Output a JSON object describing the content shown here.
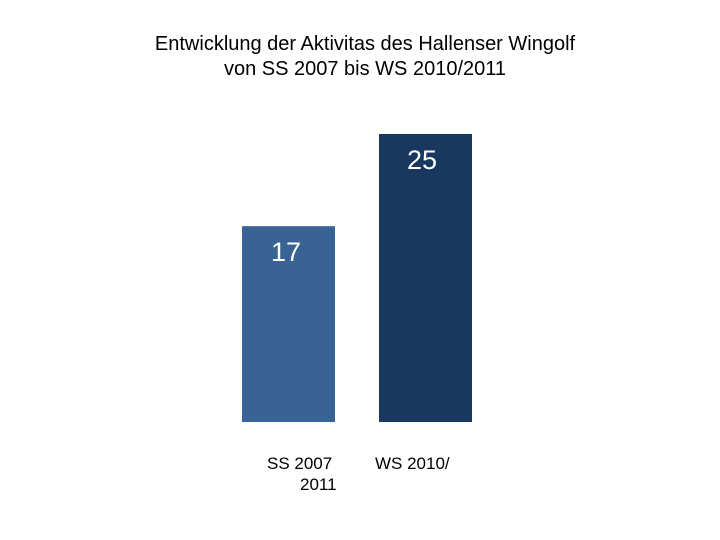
{
  "chart_data": {
    "type": "bar",
    "title_lines": [
      "Entwicklung der Aktivitas des Hallenser Wingolf",
      "von SS 2007 bis WS 2010/2011"
    ],
    "categories": [
      "SS 2007",
      "WS 2010/"
    ],
    "category_continuation": "2011",
    "values": [
      17,
      25
    ],
    "value_labels": [
      "17",
      "25"
    ],
    "colors": [
      "#3a6395",
      "#19385f"
    ],
    "ylim": [
      0,
      32
    ],
    "grid": false,
    "legend": "none"
  }
}
